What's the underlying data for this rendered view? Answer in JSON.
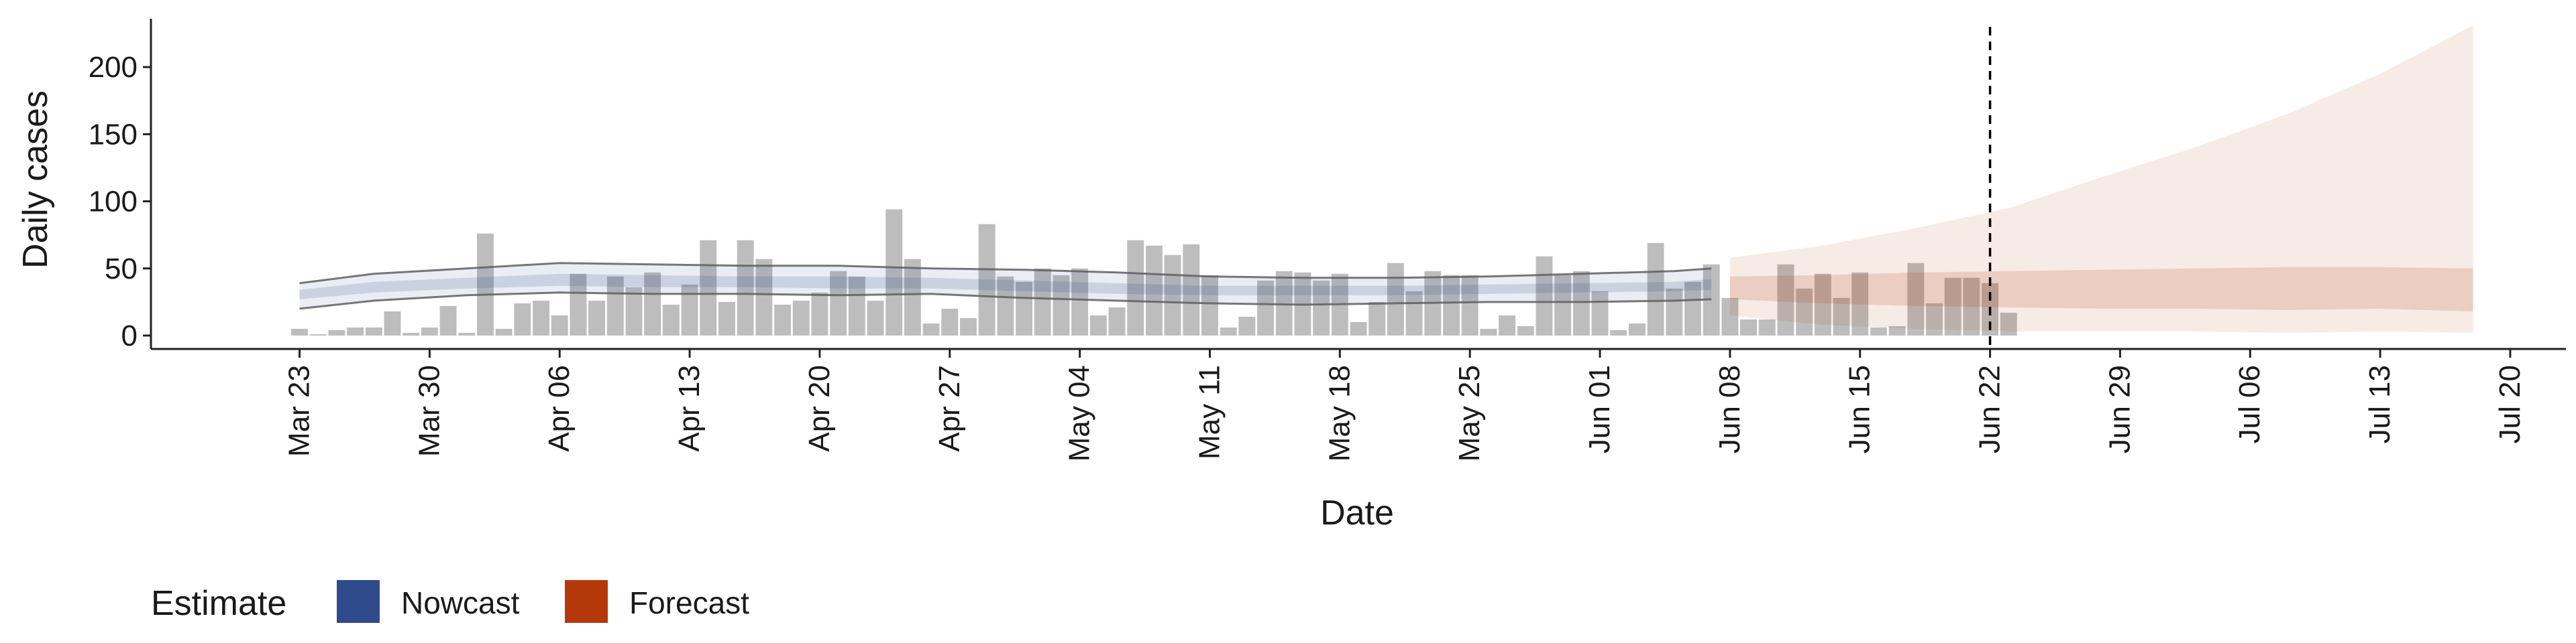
{
  "chart_data": {
    "type": "bar",
    "xlabel": "Date",
    "ylabel": "Daily cases",
    "ylim": [
      -10,
      240
    ],
    "yticks": [
      0,
      50,
      100,
      150,
      200
    ],
    "xlim": [
      "2020-03-15",
      "2020-07-23"
    ],
    "xtick_labels": [
      {
        "date": "2020-03-23",
        "label": "Mar 23"
      },
      {
        "date": "2020-03-30",
        "label": "Mar 30"
      },
      {
        "date": "2020-04-06",
        "label": "Apr 06"
      },
      {
        "date": "2020-04-13",
        "label": "Apr 13"
      },
      {
        "date": "2020-04-20",
        "label": "Apr 20"
      },
      {
        "date": "2020-04-27",
        "label": "Apr 27"
      },
      {
        "date": "2020-05-04",
        "label": "May 04"
      },
      {
        "date": "2020-05-11",
        "label": "May 11"
      },
      {
        "date": "2020-05-18",
        "label": "May 18"
      },
      {
        "date": "2020-05-25",
        "label": "May 25"
      },
      {
        "date": "2020-06-01",
        "label": "Jun 01"
      },
      {
        "date": "2020-06-08",
        "label": "Jun 08"
      },
      {
        "date": "2020-06-15",
        "label": "Jun 15"
      },
      {
        "date": "2020-06-22",
        "label": "Jun 22"
      },
      {
        "date": "2020-06-29",
        "label": "Jun 29"
      },
      {
        "date": "2020-07-06",
        "label": "Jul 06"
      },
      {
        "date": "2020-07-13",
        "label": "Jul 13"
      },
      {
        "date": "2020-07-20",
        "label": "Jul 20"
      }
    ],
    "bars": {
      "start_date": "2020-03-23",
      "values": [
        5,
        0,
        4,
        6,
        6,
        18,
        2,
        6,
        22,
        2,
        76,
        5,
        24,
        26,
        15,
        46,
        26,
        44,
        36,
        47,
        23,
        38,
        71,
        25,
        71,
        57,
        23,
        26,
        32,
        48,
        44,
        26,
        94,
        57,
        9,
        20,
        13,
        83,
        44,
        40,
        50,
        45,
        50,
        15,
        21,
        71,
        67,
        60,
        68,
        45,
        6,
        14,
        41,
        48,
        47,
        41,
        46,
        10,
        25,
        54,
        33,
        48,
        45,
        45,
        5,
        15,
        7,
        59,
        45,
        48,
        33,
        4,
        9,
        69,
        35,
        40,
        53,
        28,
        12,
        12,
        53,
        35,
        46,
        28,
        47,
        6,
        7,
        54,
        24,
        43,
        43,
        39,
        17
      ],
      "color": "#bdbdbd"
    },
    "dashed_line_date": "2020-06-22",
    "series": [
      {
        "name": "Nowcast",
        "color": "#2f4b8c",
        "dates": [
          "2020-03-23",
          "2020-03-27",
          "2020-04-01",
          "2020-04-06",
          "2020-04-11",
          "2020-04-16",
          "2020-04-21",
          "2020-04-26",
          "2020-05-01",
          "2020-05-06",
          "2020-05-11",
          "2020-05-16",
          "2020-05-21",
          "2020-05-26",
          "2020-05-31",
          "2020-06-05",
          "2020-06-07"
        ],
        "lower_90": [
          20,
          26,
          30,
          32,
          31,
          31,
          30,
          31,
          28,
          26,
          24,
          23,
          24,
          25,
          25,
          26,
          27
        ],
        "upper_90": [
          39,
          46,
          50,
          54,
          53,
          52,
          52,
          50,
          49,
          47,
          44,
          43,
          43,
          44,
          46,
          48,
          50
        ],
        "lower_50": [
          27,
          32,
          35,
          37,
          36,
          36,
          35,
          35,
          33,
          31,
          30,
          30,
          30,
          31,
          32,
          33,
          34
        ],
        "upper_50": [
          34,
          40,
          43,
          46,
          45,
          44,
          44,
          43,
          41,
          39,
          37,
          37,
          37,
          38,
          39,
          40,
          42
        ]
      },
      {
        "name": "Forecast",
        "color": "#b4390a",
        "dates": [
          "2020-06-08",
          "2020-06-13",
          "2020-06-18",
          "2020-06-23",
          "2020-06-28",
          "2020-07-03",
          "2020-07-08",
          "2020-07-13",
          "2020-07-18"
        ],
        "lower_90": [
          15,
          8,
          5,
          3,
          3,
          3,
          2,
          3,
          2
        ],
        "upper_90": [
          58,
          67,
          80,
          95,
          118,
          140,
          165,
          195,
          231
        ],
        "lower_50": [
          27,
          24,
          22,
          21,
          20,
          20,
          19,
          20,
          18
        ],
        "upper_50": [
          44,
          45,
          47,
          48,
          49,
          50,
          51,
          51,
          50
        ]
      }
    ],
    "legend": {
      "title": "Estimate",
      "position": "bottom-left",
      "items": [
        {
          "label": "Nowcast",
          "color": "#2f4b8c"
        },
        {
          "label": "Forecast",
          "color": "#b4390a"
        }
      ]
    },
    "grid": false
  }
}
